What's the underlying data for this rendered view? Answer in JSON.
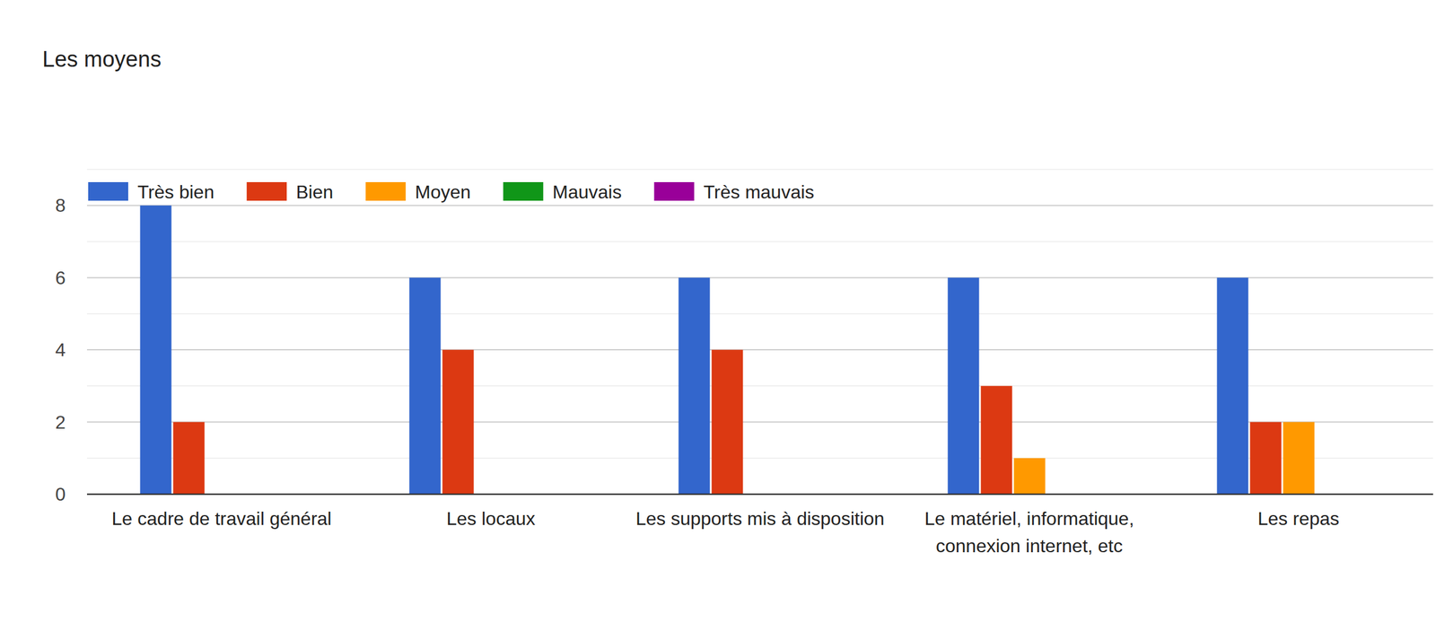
{
  "chart_data": {
    "type": "bar",
    "title": "Les moyens",
    "categories": [
      "Le cadre de travail général",
      "Les locaux",
      "Les supports mis à disposition",
      "Le matériel, informatique, connexion internet, etc",
      "Les repas"
    ],
    "series": [
      {
        "name": "Très bien",
        "color": "#3366cc",
        "values": [
          8,
          6,
          6,
          6,
          6
        ]
      },
      {
        "name": "Bien",
        "color": "#dc3912",
        "values": [
          2,
          4,
          4,
          3,
          2
        ]
      },
      {
        "name": "Moyen",
        "color": "#ff9900",
        "values": [
          0,
          0,
          0,
          1,
          2
        ]
      },
      {
        "name": "Mauvais",
        "color": "#109618",
        "values": [
          0,
          0,
          0,
          0,
          0
        ]
      },
      {
        "name": "Très mauvais",
        "color": "#990099",
        "values": [
          0,
          0,
          0,
          0,
          0
        ]
      }
    ],
    "ylim": [
      0,
      9
    ],
    "yticks": [
      0,
      2,
      4,
      6,
      8
    ],
    "grid": true,
    "legend": "top-left"
  }
}
